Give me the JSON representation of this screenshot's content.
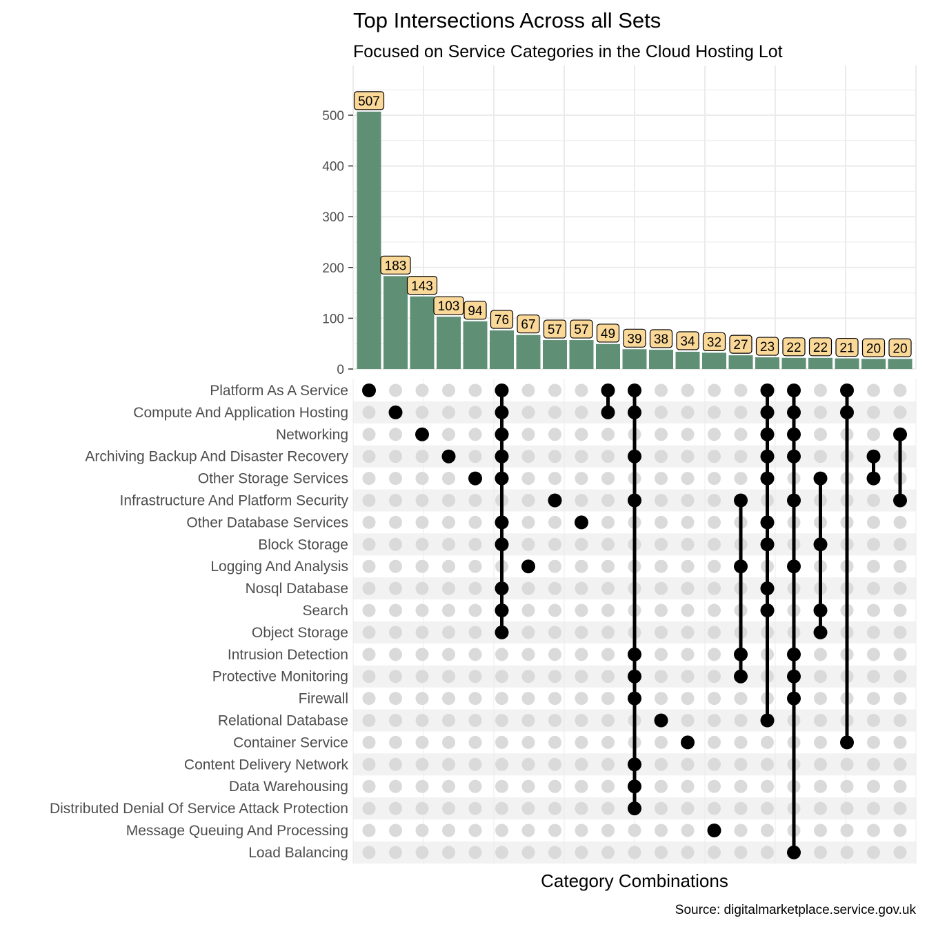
{
  "chart_data": {
    "type": "bar",
    "title": "Top Intersections Across all Sets",
    "subtitle": "Focused on Service Categories in the Cloud Hosting Lot",
    "xlabel": "Category Combinations",
    "ylabel": "",
    "caption": "Source: digitalmarketplace.service.gov.uk",
    "ylim": [
      0,
      550
    ],
    "yticks": [
      0,
      100,
      200,
      300,
      400,
      500
    ],
    "grid": true,
    "values": [
      507,
      183,
      143,
      103,
      94,
      76,
      67,
      57,
      57,
      49,
      39,
      38,
      34,
      32,
      27,
      23,
      22,
      22,
      21,
      20,
      20
    ],
    "sets": [
      "Platform As A Service",
      "Compute And Application Hosting",
      "Networking",
      "Archiving Backup And Disaster Recovery",
      "Other Storage Services",
      "Infrastructure And Platform Security",
      "Other Database Services",
      "Block Storage",
      "Logging And Analysis",
      "Nosql Database",
      "Search",
      "Object Storage",
      "Intrusion Detection",
      "Protective Monitoring",
      "Firewall",
      "Relational Database",
      "Container Service",
      "Content Delivery Network",
      "Data Warehousing",
      "Distributed Denial Of Service Attack  Protection",
      "Message Queuing And Processing",
      "Load Balancing"
    ],
    "combinations": [
      [
        "Platform As A Service"
      ],
      [
        "Compute And Application Hosting"
      ],
      [
        "Networking"
      ],
      [
        "Archiving Backup And Disaster Recovery"
      ],
      [
        "Other Storage Services"
      ],
      [
        "Platform As A Service",
        "Compute And Application Hosting",
        "Networking",
        "Archiving Backup And Disaster Recovery",
        "Other Storage Services",
        "Other Database Services",
        "Block Storage",
        "Nosql Database",
        "Search",
        "Object Storage"
      ],
      [
        "Logging And Analysis"
      ],
      [
        "Infrastructure And Platform Security"
      ],
      [
        "Other Database Services"
      ],
      [
        "Platform As A Service",
        "Compute And Application Hosting"
      ],
      [
        "Platform As A Service",
        "Compute And Application Hosting",
        "Archiving Backup And Disaster Recovery",
        "Infrastructure And Platform Security",
        "Intrusion Detection",
        "Protective Monitoring",
        "Firewall",
        "Content Delivery Network",
        "Data Warehousing",
        "Distributed Denial Of Service Attack  Protection"
      ],
      [
        "Relational Database"
      ],
      [
        "Container Service"
      ],
      [
        "Message Queuing And Processing"
      ],
      [
        "Infrastructure And Platform Security",
        "Logging And Analysis",
        "Intrusion Detection",
        "Protective Monitoring"
      ],
      [
        "Platform As A Service",
        "Compute And Application Hosting",
        "Networking",
        "Archiving Backup And Disaster Recovery",
        "Other Storage Services",
        "Other Database Services",
        "Block Storage",
        "Nosql Database",
        "Search",
        "Relational Database"
      ],
      [
        "Platform As A Service",
        "Compute And Application Hosting",
        "Networking",
        "Archiving Backup And Disaster Recovery",
        "Infrastructure And Platform Security",
        "Logging And Analysis",
        "Intrusion Detection",
        "Protective Monitoring",
        "Firewall",
        "Load Balancing"
      ],
      [
        "Other Storage Services",
        "Block Storage",
        "Search",
        "Object Storage"
      ],
      [
        "Platform As A Service",
        "Compute And Application Hosting",
        "Container Service"
      ],
      [
        "Archiving Backup And Disaster Recovery",
        "Other Storage Services"
      ],
      [
        "Networking",
        "Infrastructure And Platform Security"
      ]
    ],
    "colors": {
      "bar": "#5F9076",
      "label_fill": "#FAD898",
      "dot_on": "#000000",
      "dot_off": "#DADADA",
      "stripe": "#F2F2F2",
      "grid": "#EBEBEB"
    }
  }
}
